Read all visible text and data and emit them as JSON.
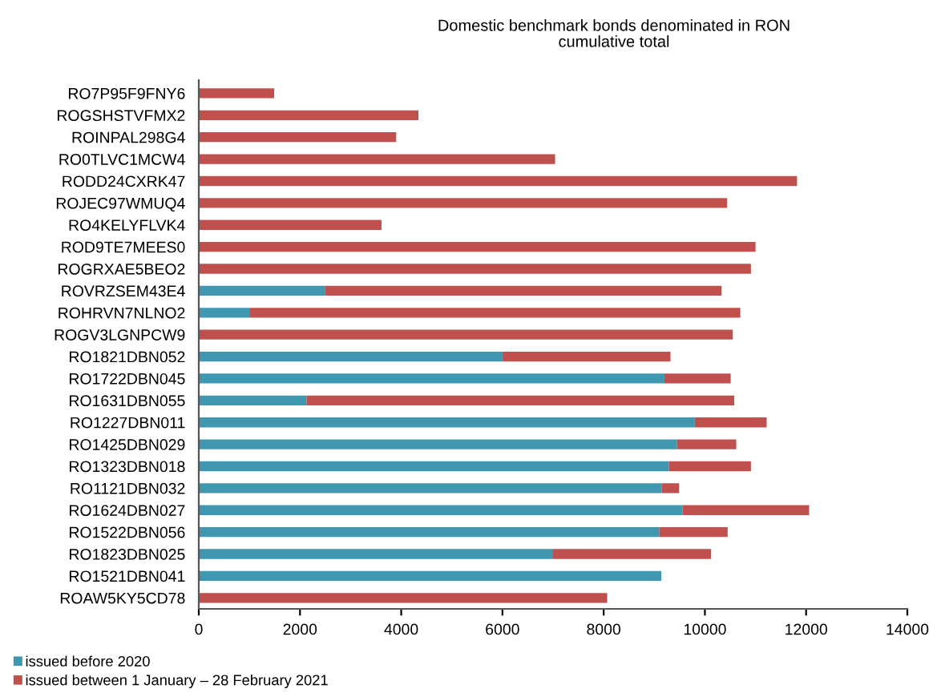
{
  "chart_data": {
    "type": "bar",
    "orientation": "horizontal",
    "stacked": true,
    "title": "Domestic benchmark bonds denominated in RON\ncumulative total",
    "categories": [
      "RO7P95F9FNY6",
      "ROGSHSTVFMX2",
      "ROINPAL298G4",
      "RO0TLVC1MCW4",
      "RODD24CXRK47",
      "ROJEC97WMUQ4",
      "RO4KELYFLVK4",
      "ROD9TE7MEES0",
      "ROGRXAE5BEO2",
      "ROVRZSEM43E4",
      "ROHRVN7NLNO2",
      "ROGV3LGNPCW9",
      "RO1821DBN052",
      "RO1722DBN045",
      "RO1631DBN055",
      "RO1227DBN011",
      "RO1425DBN029",
      "RO1323DBN018",
      "RO1121DBN032",
      "RO1624DBN027",
      "RO1522DBN056",
      "RO1823DBN025",
      "RO1521DBN041",
      "ROAW5KY5CD78"
    ],
    "series": [
      {
        "name": "issued before 2020",
        "color": "#3f97b0",
        "values": [
          null,
          null,
          null,
          null,
          null,
          null,
          null,
          null,
          null,
          2490,
          1000,
          null,
          6000,
          9200,
          2130,
          9800,
          9450,
          9290,
          9150,
          9560,
          9100,
          7000,
          9140,
          null
        ]
      },
      {
        "name": "issued between 1 January – 28 February 2021",
        "color": "#c0504d",
        "values": [
          1490,
          4340,
          3900,
          7040,
          11820,
          10440,
          3610,
          11000,
          10910,
          7840,
          9700,
          10550,
          3320,
          1310,
          8450,
          1420,
          1170,
          1620,
          340,
          2500,
          1350,
          3120,
          null,
          8070
        ]
      }
    ],
    "xlim": [
      0,
      14000
    ],
    "xticks": [
      0,
      2000,
      4000,
      6000,
      8000,
      10000,
      12000,
      14000
    ],
    "grid": false,
    "legend": "bottom left"
  }
}
